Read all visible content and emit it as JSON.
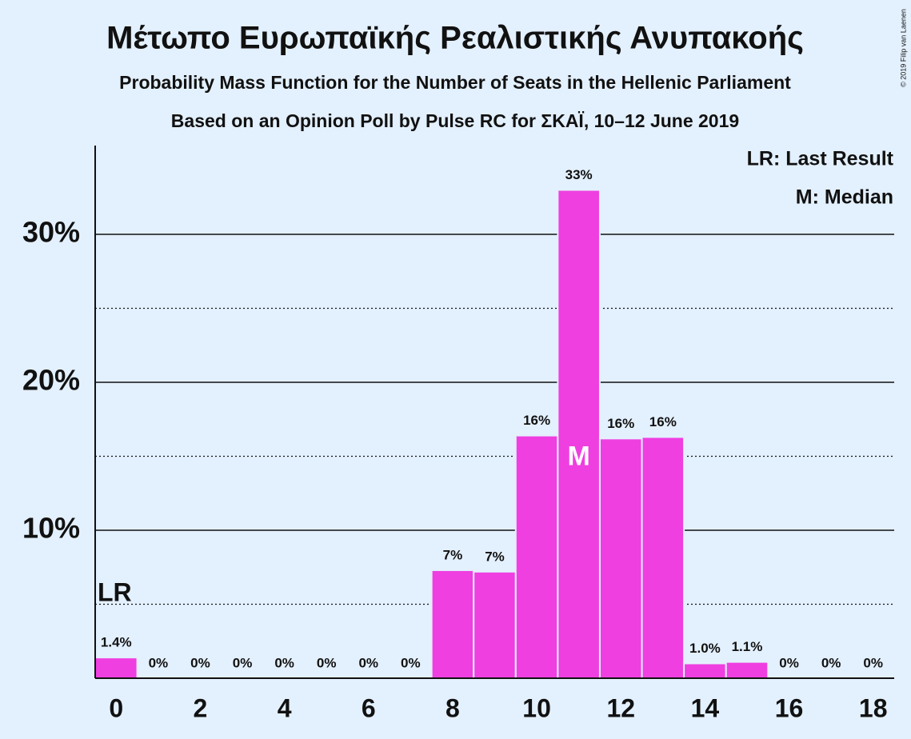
{
  "chart_data": {
    "type": "bar",
    "title": "Μέτωπο Ευρωπαϊκής Ρεαλιστικής Ανυπακοής",
    "subtitle": "Probability Mass Function for the Number of Seats in the Hellenic Parliament",
    "subtitle2": "Based on an Opinion Poll by Pulse RC for ΣΚΑΪ, 10–12 June 2019",
    "copyright": "© 2019 Filip van Laenen",
    "categories": [
      0,
      null,
      2,
      null,
      4,
      null,
      6,
      null,
      8,
      null,
      10,
      null,
      12,
      null,
      14,
      null,
      16,
      null,
      18
    ],
    "values": [
      1.4,
      0,
      0,
      0,
      0,
      0,
      0,
      0,
      7.3,
      7.2,
      16.4,
      33.0,
      16.2,
      16.3,
      1.0,
      1.1,
      0,
      0,
      0
    ],
    "value_labels": [
      "1.4%",
      "0%",
      "0%",
      "0%",
      "0%",
      "0%",
      "0%",
      "0%",
      "7%",
      "7%",
      "16%",
      "33%",
      "16%",
      "16%",
      "1.0%",
      "1.1%",
      "0%",
      "0%",
      "0%"
    ],
    "color": "#ef3fe0",
    "ylim": [
      0,
      36
    ],
    "yticks": [
      {
        "value": 10,
        "label": "10%"
      },
      {
        "value": 20,
        "label": "20%"
      },
      {
        "value": 30,
        "label": "30%"
      }
    ],
    "yminor": [
      5,
      15,
      25
    ],
    "grid": true,
    "annotations": [
      {
        "text": "LR",
        "seats": 0
      },
      {
        "text": "M",
        "seats": 11
      }
    ],
    "legend": [
      "LR: Last Result",
      "M: Median"
    ]
  }
}
